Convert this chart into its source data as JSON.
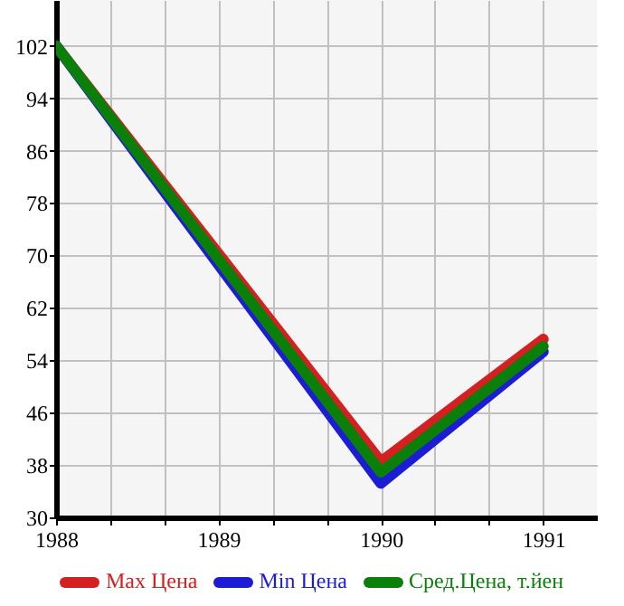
{
  "chart_data": {
    "type": "line",
    "x": [
      1988,
      1990,
      1991
    ],
    "series": [
      {
        "name": "Max Цена",
        "color": "#d42020",
        "values": [
          102,
          38.5,
          57.2
        ]
      },
      {
        "name": "Min Цена",
        "color": "#1c1cd4",
        "values": [
          102,
          35.2,
          55.3
        ]
      },
      {
        "name": "Сред.Цена, т.йен",
        "color": "#0a7f0a",
        "values": [
          102,
          36.9,
          56.1
        ]
      }
    ],
    "xlim": [
      1988,
      1991.33
    ],
    "ylim": [
      30,
      109
    ],
    "xticks": [
      1988,
      {
        "value": 1988.333,
        "label": null
      },
      {
        "value": 1988.667,
        "label": null
      },
      1989,
      {
        "value": 1989.333,
        "label": null
      },
      {
        "value": 1989.667,
        "label": null
      },
      1990,
      {
        "value": 1990.333,
        "label": null
      },
      {
        "value": 1990.667,
        "label": null
      },
      1991
    ],
    "yticks": [
      30,
      38,
      46,
      54,
      62,
      70,
      78,
      86,
      94,
      102
    ],
    "grid": true,
    "legend": "bottom",
    "marker": "none",
    "line_style": "solid"
  }
}
